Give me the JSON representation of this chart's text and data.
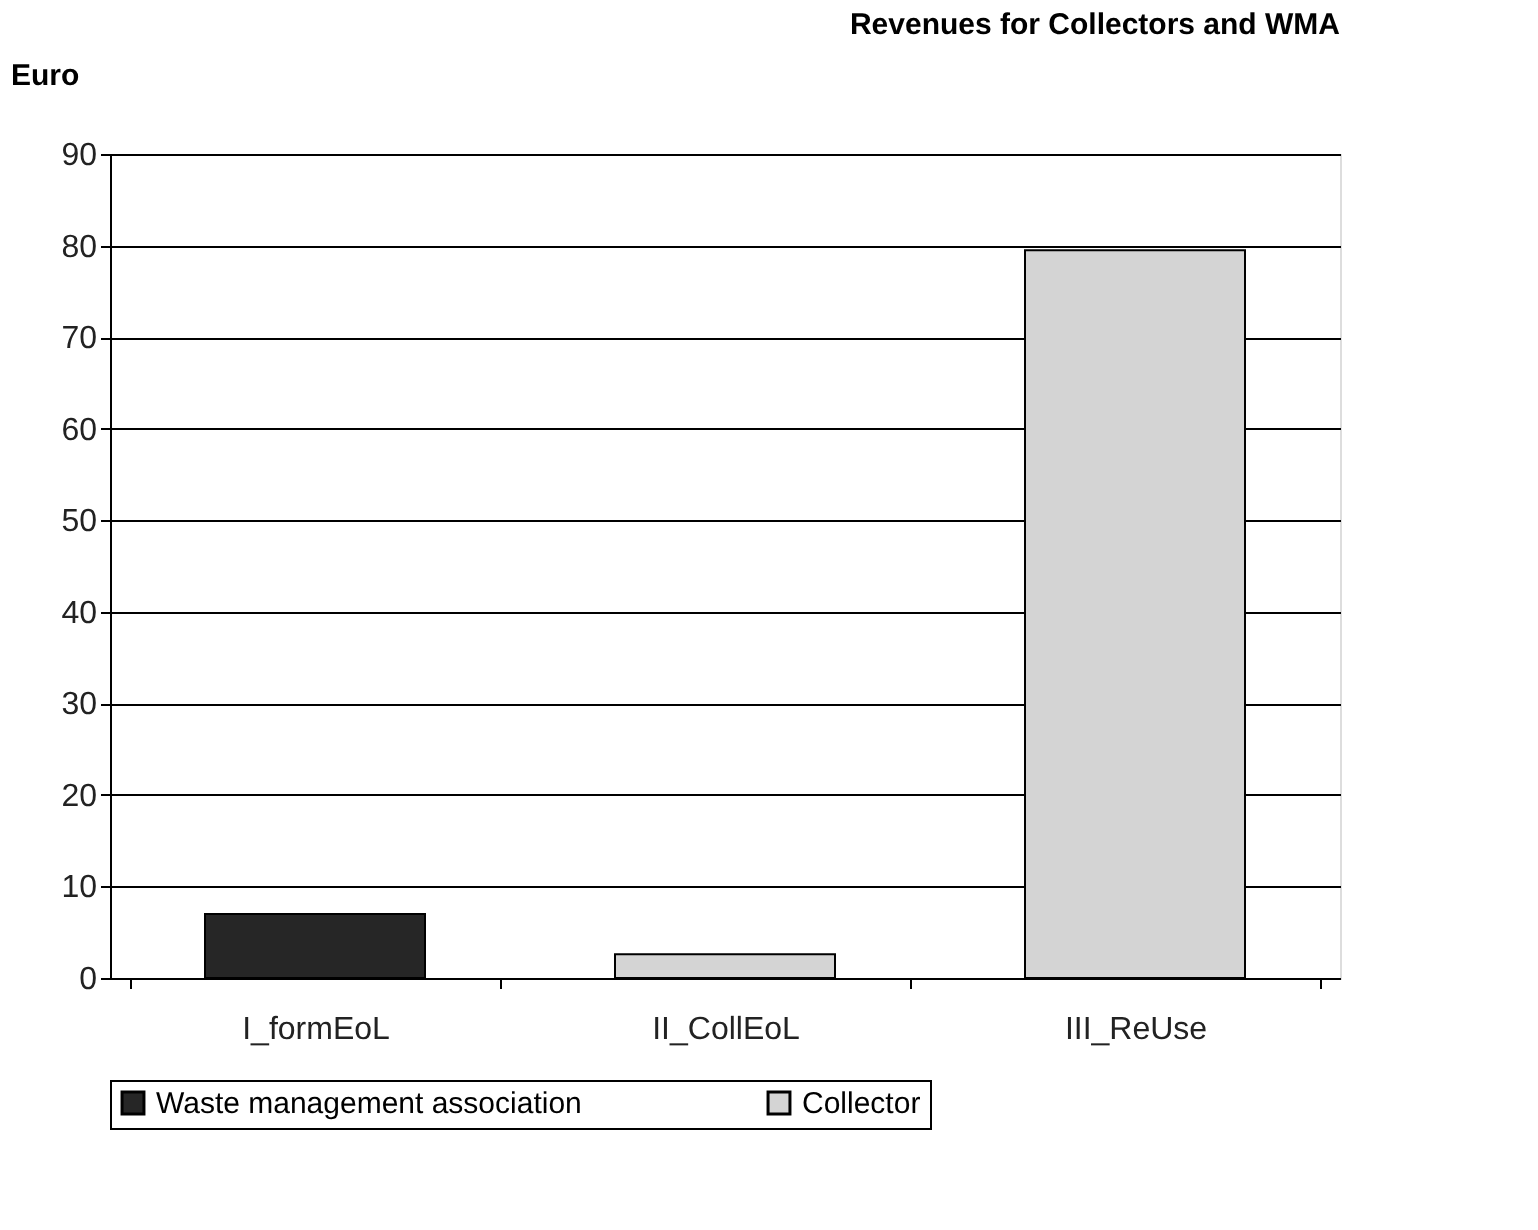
{
  "chart_data": {
    "type": "bar",
    "title": "Revenues for Collectors and WMA",
    "ylabel": "Euro",
    "categories": [
      "I_formEoL",
      "II_CollEoL",
      "III_ReUse"
    ],
    "series": [
      {
        "name": "Waste management association",
        "color": "#262626",
        "values": [
          7.0,
          null,
          null
        ]
      },
      {
        "name": "Collector",
        "color": "#d4d4d4",
        "values": [
          null,
          2.6,
          79.5
        ]
      }
    ],
    "ylim": [
      0,
      90
    ],
    "yticks": [
      0,
      10,
      20,
      30,
      40,
      50,
      60,
      70,
      80,
      90
    ],
    "grid": "y",
    "legend": "bottom"
  }
}
